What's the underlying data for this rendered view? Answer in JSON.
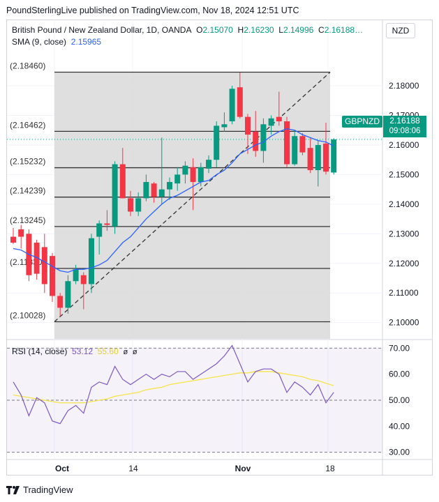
{
  "header": {
    "text": "PoundSterlingLive published on TradingView.com, Nov 18, 2024 12:51 UTC"
  },
  "legend": {
    "symbol": "British Pound / New Zealand Dollar, 1D, OANDA",
    "o_label": "O",
    "o_value": "2.15070",
    "h_label": "H",
    "h_value": "2.16230",
    "l_label": "L",
    "l_value": "2.14996",
    "c_label": "C",
    "c_value": "2.16188…",
    "sma_label": "SMA (9, close)",
    "sma_value": "2.15965"
  },
  "rsi_legend": {
    "label": "RSI (14, close)",
    "rsi_value": "53.12",
    "ma_value": "55.60",
    "icons": [
      "eye-off-icon",
      "eye-off-icon"
    ]
  },
  "currency": "NZD",
  "symbol_tag": "GBPNZD",
  "last_price": {
    "price": "2.16188",
    "countdown": "09:08:06"
  },
  "footer": {
    "brand": "TradingView"
  },
  "colors": {
    "up": "#089981",
    "down": "#f23645",
    "sma": "#2962ff",
    "rsi": "#7e57c2",
    "rsi_ma": "#f7e34a",
    "box": "#d9d9d9",
    "grid": "#f0f3fa"
  },
  "chart_data": [
    {
      "type": "candlestick",
      "title": "British Pound / New Zealand Dollar, 1D, OANDA",
      "x_tick_labels": [
        "Oct",
        "14",
        "Nov",
        "18"
      ],
      "y_tick_labels": [
        "2.18000",
        "2.17000",
        "2.16000",
        "2.15000",
        "2.14000",
        "2.13000",
        "2.12000",
        "2.11000",
        "2.10000"
      ],
      "ylim": [
        2.0945,
        2.1925
      ],
      "fib_levels": [
        {
          "value": 2.1846,
          "label": "(2.18460)"
        },
        {
          "value": 2.16462,
          "label": "(2.16462)"
        },
        {
          "value": 2.15232,
          "label": "(2.15232)"
        },
        {
          "value": 2.14239,
          "label": "(2.14239)"
        },
        {
          "value": 2.13245,
          "label": "(2.13245)"
        },
        {
          "value": 2.1183,
          "label": "(2.11830)"
        },
        {
          "value": 2.10028,
          "label": "(2.10028)"
        }
      ],
      "candles": [
        [
          2.129,
          2.132,
          2.1265,
          2.127
        ],
        [
          2.1315,
          2.133,
          2.125,
          2.129
        ],
        [
          2.13,
          2.1315,
          2.114,
          2.116
        ],
        [
          2.127,
          2.128,
          2.1145,
          2.1165
        ],
        [
          2.1255,
          2.13,
          2.11,
          2.113
        ],
        [
          2.1225,
          2.1235,
          2.107,
          2.109
        ],
        [
          2.109,
          2.11,
          2.102,
          2.105
        ],
        [
          2.105,
          2.116,
          2.103,
          2.114
        ],
        [
          2.114,
          2.1195,
          2.113,
          2.118
        ],
        [
          2.116,
          2.117,
          2.1045,
          2.113
        ],
        [
          2.113,
          2.13,
          2.11,
          2.1285
        ],
        [
          2.129,
          2.1345,
          2.123,
          2.1335
        ],
        [
          2.1335,
          2.138,
          2.131,
          2.133
        ],
        [
          2.1325,
          2.1545,
          2.13,
          2.1535
        ],
        [
          2.1535,
          2.159,
          2.142,
          2.142
        ],
        [
          2.142,
          2.1445,
          2.136,
          2.1375
        ],
        [
          2.1375,
          2.144,
          2.136,
          2.142
        ],
        [
          2.142,
          2.15,
          2.141,
          2.1475
        ],
        [
          2.147,
          2.1475,
          2.1405,
          2.1425
        ],
        [
          2.1425,
          2.1625,
          2.14,
          2.145
        ],
        [
          2.145,
          2.149,
          2.1415,
          2.1475
        ],
        [
          2.147,
          2.1525,
          2.1445,
          2.15
        ],
        [
          2.15,
          2.1545,
          2.147,
          2.153
        ],
        [
          2.1525,
          2.1555,
          2.138,
          2.1475
        ],
        [
          2.1475,
          2.154,
          2.146,
          2.1525
        ],
        [
          2.152,
          2.1565,
          2.1505,
          2.155
        ],
        [
          2.155,
          2.168,
          2.1525,
          2.1665
        ],
        [
          2.166,
          2.171,
          2.1645,
          2.167
        ],
        [
          2.168,
          2.18,
          2.167,
          2.179
        ],
        [
          2.1795,
          2.1845,
          2.169,
          2.1695
        ],
        [
          2.1695,
          2.1705,
          2.157,
          2.1635
        ],
        [
          2.1645,
          2.1715,
          2.156,
          2.158
        ],
        [
          2.158,
          2.169,
          2.154,
          2.167
        ],
        [
          2.1665,
          2.17,
          2.1635,
          2.169
        ],
        [
          2.1695,
          2.178,
          2.1665,
          2.168
        ],
        [
          2.168,
          2.1695,
          2.1525,
          2.1535
        ],
        [
          2.1535,
          2.165,
          2.153,
          2.163
        ],
        [
          2.163,
          2.164,
          2.1565,
          2.1575
        ],
        [
          2.159,
          2.1625,
          2.1505,
          2.1515
        ],
        [
          2.1515,
          2.1615,
          2.146,
          2.16
        ],
        [
          2.1605,
          2.1675,
          2.15,
          2.151
        ],
        [
          2.1507,
          2.1623,
          2.15,
          2.1619
        ]
      ],
      "sma": [
        2.125,
        2.1245,
        2.123,
        2.122,
        2.1205,
        2.119,
        2.1175,
        2.117,
        2.118,
        2.118,
        2.1185,
        2.1195,
        2.121,
        2.124,
        2.127,
        2.129,
        2.132,
        2.135,
        2.1375,
        2.14,
        2.142,
        2.143,
        2.1445,
        2.146,
        2.1475,
        2.148,
        2.15,
        2.1515,
        2.154,
        2.157,
        2.1585,
        2.16,
        2.161,
        2.163,
        2.1645,
        2.1655,
        2.165,
        2.1635,
        2.1625,
        2.1615,
        2.161,
        2.1597
      ]
    },
    {
      "type": "line",
      "title": "RSI (14, close)",
      "y_tick_labels": [
        "70.00",
        "60.00",
        "50.00",
        "40.00",
        "30.00"
      ],
      "ylim": [
        27.5,
        72.5
      ],
      "levels": [
        70,
        50,
        30
      ],
      "series": [
        {
          "name": "RSI",
          "values": [
            57,
            52,
            44,
            51,
            49,
            42,
            41,
            46,
            48,
            45,
            55,
            57,
            56,
            63,
            58,
            56,
            58,
            60,
            58,
            60,
            59,
            61,
            61,
            58,
            60,
            62,
            64,
            67,
            71,
            64,
            57,
            61,
            62,
            62,
            60,
            53,
            57,
            55,
            52,
            56,
            49,
            53
          ]
        },
        {
          "name": "MA",
          "values": [
            52,
            51.5,
            51,
            50.5,
            50,
            49.5,
            49,
            49,
            49,
            49,
            49.5,
            50,
            50.5,
            51.5,
            52,
            52.5,
            53,
            54,
            54.5,
            55,
            56,
            56.5,
            57,
            57.5,
            58,
            58.5,
            59,
            59.5,
            60,
            60.5,
            60.5,
            61,
            61,
            61,
            60.5,
            60,
            59.5,
            59,
            58,
            57.5,
            56.5,
            55.6
          ]
        }
      ]
    }
  ]
}
